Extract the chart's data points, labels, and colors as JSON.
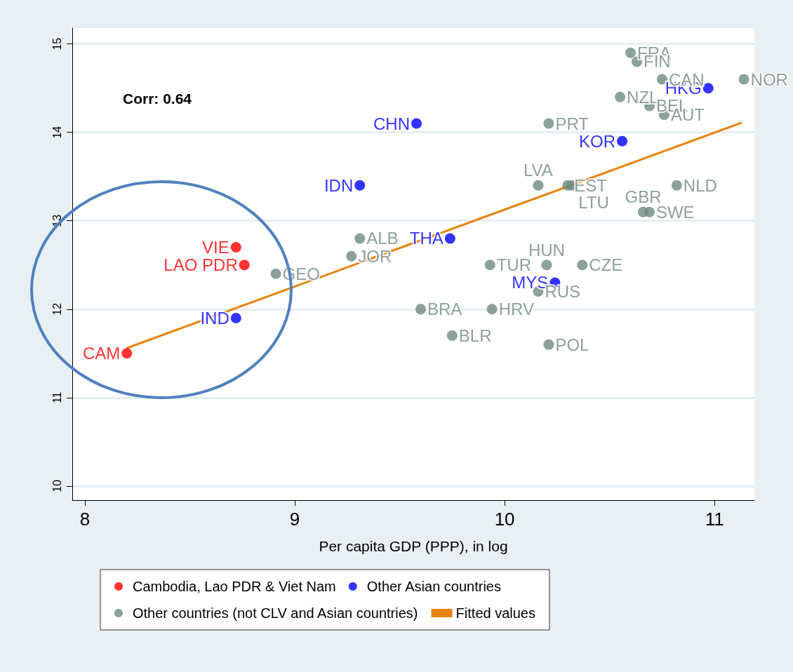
{
  "chart_data": {
    "type": "scatter",
    "xlabel": "Per capita GDP (PPP), in log",
    "annotations": [
      "Corr: 0.64"
    ],
    "xlim": [
      7.94,
      11.19
    ],
    "ylim": [
      9.84,
      15.18
    ],
    "xticks": [
      8,
      9,
      10,
      11
    ],
    "yticks": [
      10,
      11,
      12,
      13,
      14,
      15
    ],
    "grid": "y",
    "legend": "bottom",
    "marker": "circle",
    "series": [
      {
        "name": "Cambodia, Lao PDR & Viet Nam",
        "color": "#ff0000",
        "x": [
          8.2,
          8.72,
          8.76
        ],
        "values": [
          11.5,
          12.7,
          12.5
        ],
        "value_labels": [
          "CAM",
          "VIE",
          "LAO PDR"
        ]
      },
      {
        "name": "Other Asian countries",
        "color": "#0000ff",
        "x": [
          8.72,
          9.58,
          9.31,
          9.74,
          10.24,
          10.56,
          10.97
        ],
        "values": [
          11.9,
          14.1,
          13.4,
          12.8,
          12.3,
          13.9,
          14.5
        ],
        "value_labels": [
          "IND",
          "CHN",
          "IDN",
          "THA",
          "MYS",
          "KOR",
          "HKG"
        ]
      },
      {
        "name": "Other countries (not CLV and Asian countries)",
        "color": "#6f8a80",
        "x": [
          8.91,
          9.31,
          9.27,
          9.6,
          9.75,
          9.93,
          9.94,
          10.2,
          10.37,
          10.16,
          10.21,
          10.16,
          10.3,
          10.32,
          10.82,
          10.66,
          10.69,
          10.21,
          10.55,
          10.69,
          10.76,
          10.75,
          10.6,
          10.63,
          11.14
        ],
        "values": [
          12.4,
          12.8,
          12.6,
          12.0,
          11.7,
          12.5,
          12.0,
          12.5,
          12.5,
          12.2,
          11.6,
          13.4,
          13.4,
          13.4,
          13.4,
          13.1,
          13.1,
          14.1,
          14.4,
          14.3,
          14.2,
          14.6,
          14.9,
          14.8,
          14.6
        ],
        "value_labels": [
          "GEO",
          "ALB",
          "JOR",
          "BRA",
          "BLR",
          "TUR",
          "HRV",
          "HUN",
          "CZE",
          "RUS",
          "POL",
          "LVA",
          "EST",
          "LTU",
          "NLD",
          "GBR",
          "SWE",
          "PRT",
          "NZL",
          "BEL",
          "AUT",
          "CAN",
          "FRA",
          "FIN",
          "NOR"
        ]
      },
      {
        "name": "Fitted values",
        "type": "line",
        "marker": "none",
        "color": "#e8820c",
        "x": [
          8.2,
          11.13
        ],
        "values": [
          11.56,
          14.11
        ]
      }
    ]
  }
}
